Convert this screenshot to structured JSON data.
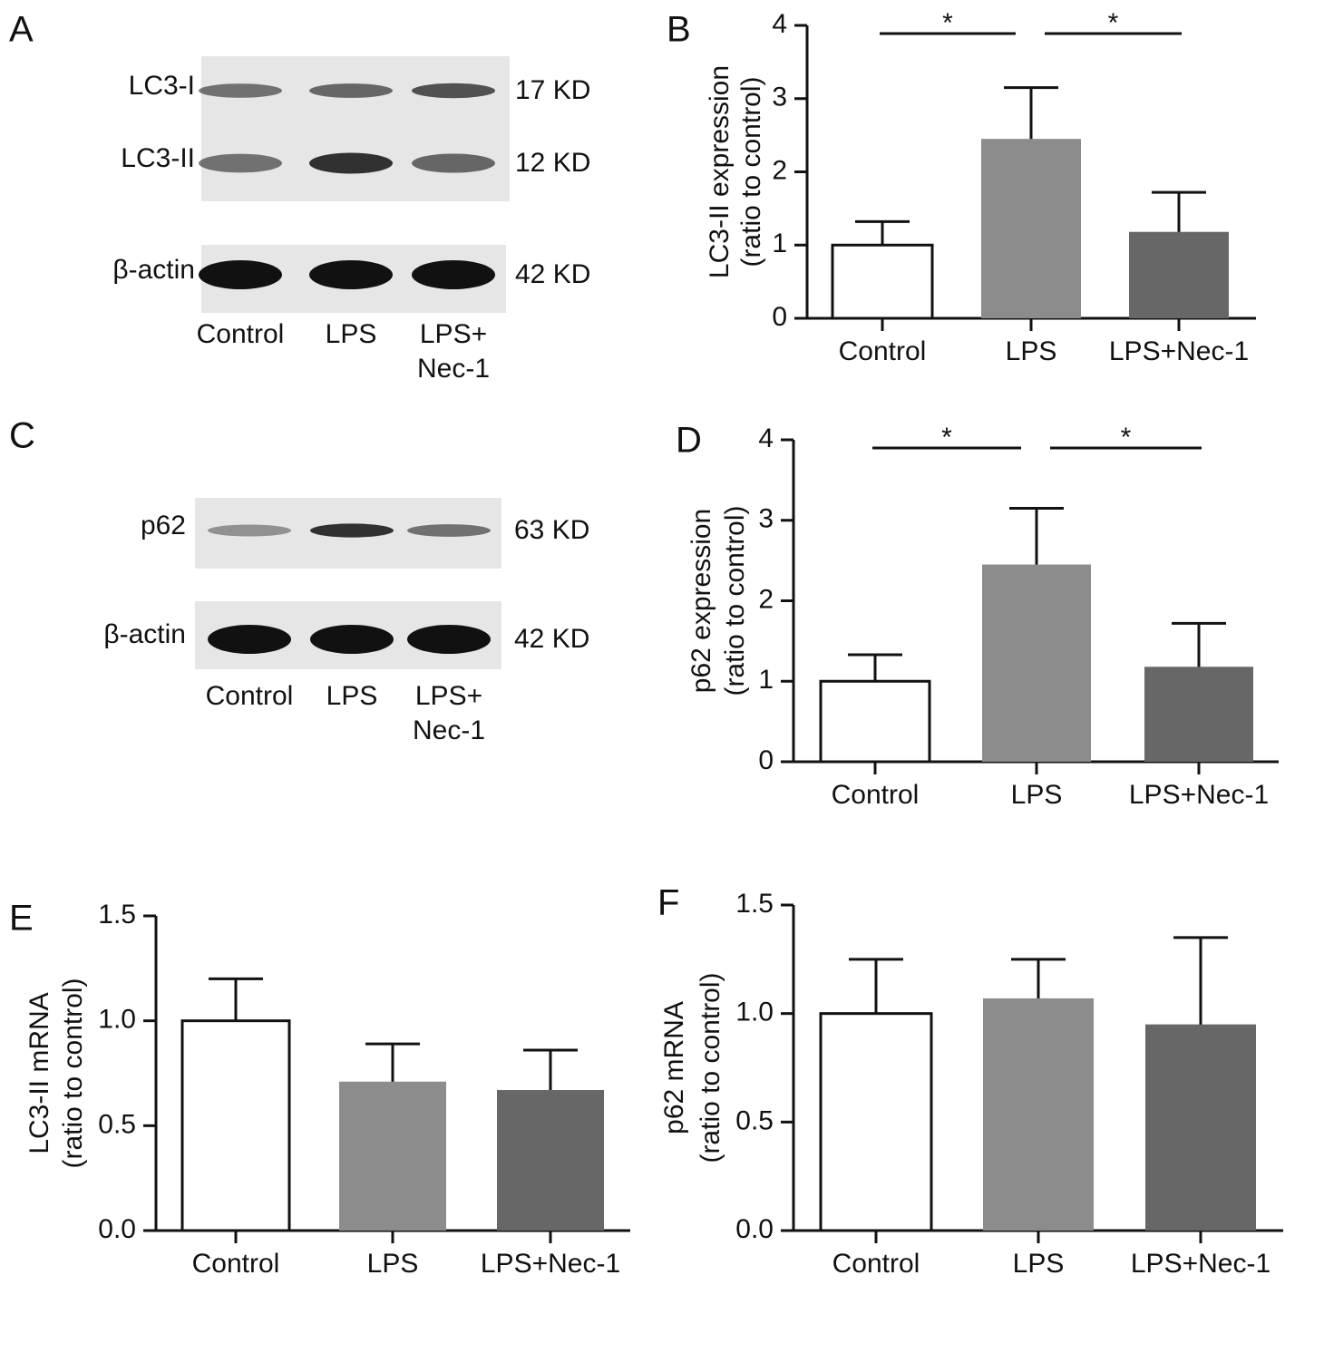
{
  "panels": [
    "A",
    "B",
    "C",
    "D",
    "E",
    "F"
  ],
  "blots": [
    {
      "rows": [
        {
          "label": "LC3-I",
          "size": "17 KD"
        },
        {
          "label": "LC3-II",
          "size": "12 KD"
        },
        {
          "label": "β-actin",
          "size": "42 KD"
        }
      ],
      "lanes": [
        [
          "Control"
        ],
        [
          "LPS"
        ],
        [
          "LPS+",
          "Nec-1"
        ]
      ]
    },
    {
      "rows": [
        {
          "label": "p62",
          "size": "63 KD"
        },
        {
          "label": "β-actin",
          "size": "42 KD"
        }
      ],
      "lanes": [
        [
          "Control"
        ],
        [
          "LPS"
        ],
        [
          "LPS+",
          "Nec-1"
        ]
      ]
    }
  ],
  "chart_data": [
    {
      "type": "bar",
      "ylabel": [
        "LC3-II expression",
        "(ratio to control)"
      ],
      "categories": [
        "Control",
        "LPS",
        "LPS+Nec-1"
      ],
      "values": [
        1.0,
        2.45,
        1.18
      ],
      "errors": [
        0.32,
        0.7,
        0.54
      ],
      "colors": [
        "#ffffff",
        "#8c8c8c",
        "#676767"
      ],
      "ylim": [
        0,
        4
      ],
      "yticks": [
        0,
        1,
        2,
        3,
        4
      ],
      "annotations": [
        "*",
        "*"
      ]
    },
    {
      "type": "bar",
      "ylabel": [
        "p62 expression",
        "(ratio to control)"
      ],
      "categories": [
        "Control",
        "LPS",
        "LPS+Nec-1"
      ],
      "values": [
        1.0,
        2.45,
        1.18
      ],
      "errors": [
        0.33,
        0.7,
        0.54
      ],
      "colors": [
        "#ffffff",
        "#8c8c8c",
        "#676767"
      ],
      "ylim": [
        0,
        4
      ],
      "yticks": [
        0,
        1,
        2,
        3,
        4
      ],
      "annotations": [
        "*",
        "*"
      ]
    },
    {
      "type": "bar",
      "ylabel": [
        "LC3-II mRNA",
        "(ratio to control)"
      ],
      "categories": [
        "Control",
        "LPS",
        "LPS+Nec-1"
      ],
      "values": [
        1.0,
        0.71,
        0.67
      ],
      "errors": [
        0.2,
        0.18,
        0.19
      ],
      "colors": [
        "#ffffff",
        "#8c8c8c",
        "#676767"
      ],
      "ylim": [
        0,
        1.5
      ],
      "yticks": [
        {
          "value": 0,
          "label": "0.0"
        },
        0.5,
        {
          "value": 1,
          "label": "1.0"
        },
        1.5
      ]
    },
    {
      "type": "bar",
      "ylabel": [
        "p62 mRNA",
        "(ratio to control)"
      ],
      "categories": [
        "Control",
        "LPS",
        "LPS+Nec-1"
      ],
      "values": [
        1.0,
        1.07,
        0.95
      ],
      "errors": [
        0.25,
        0.18,
        0.4
      ],
      "colors": [
        "#ffffff",
        "#8c8c8c",
        "#676767"
      ],
      "ylim": [
        0,
        1.5
      ],
      "yticks": [
        {
          "value": 0,
          "label": "0.0"
        },
        0.5,
        {
          "value": 1,
          "label": "1.0"
        },
        1.5
      ]
    }
  ]
}
